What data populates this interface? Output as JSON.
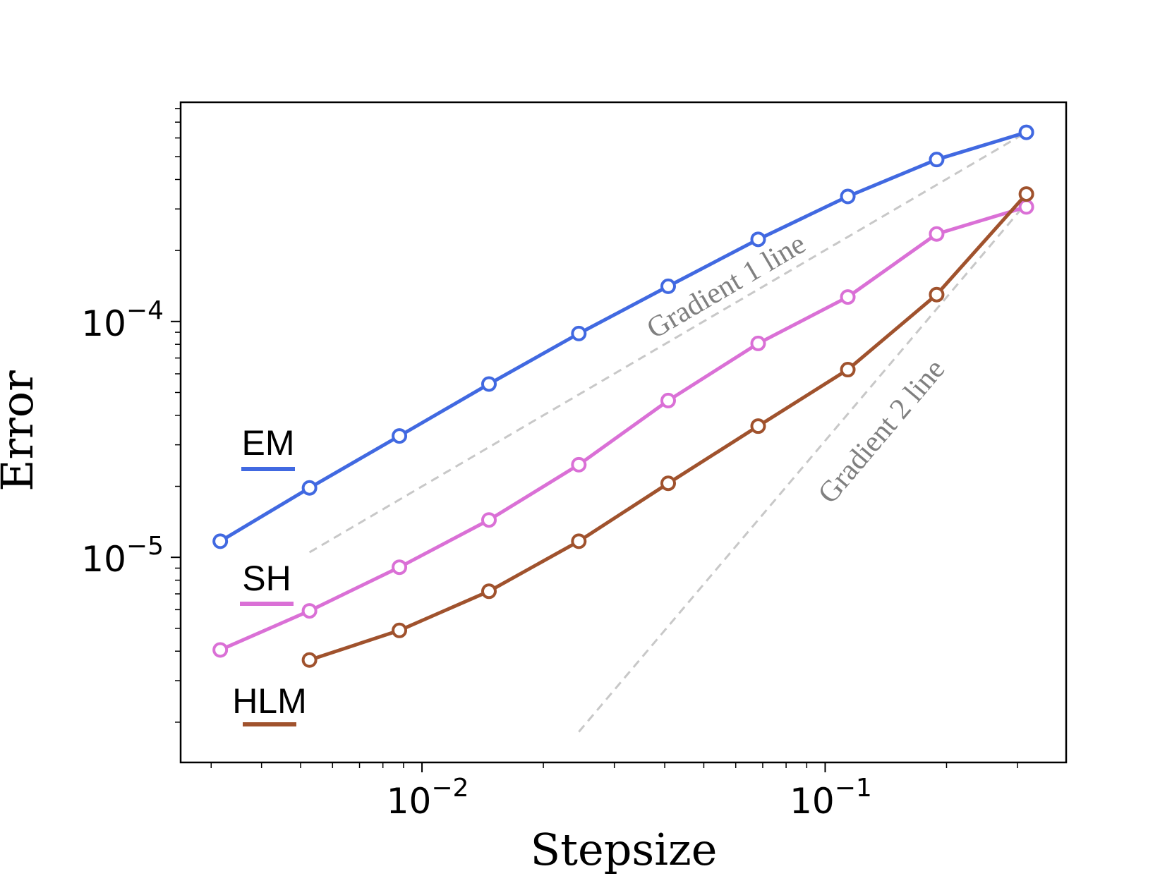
{
  "chart_data": {
    "type": "line",
    "xlabel": "Stepsize",
    "ylabel": "Error",
    "log_x": true,
    "log_y": true,
    "x": [
      0.00316,
      0.00526,
      0.00879,
      0.01466,
      0.02449,
      0.0408,
      0.0682,
      0.1138,
      0.189,
      0.3155
    ],
    "series": [
      {
        "name": "EM",
        "color": "#4169e1",
        "values": [
          1.17e-05,
          1.97e-05,
          3.27e-05,
          5.43e-05,
          8.89e-05,
          0.000141,
          0.000223,
          0.000339,
          0.000486,
          0.000634
        ]
      },
      {
        "name": "SH",
        "color": "#da70d6",
        "values": [
          4.05e-06,
          5.93e-06,
          9.08e-06,
          1.44e-05,
          2.47e-05,
          4.62e-05,
          8.07e-05,
          0.000127,
          0.000235,
          0.000306
        ]
      },
      {
        "name": "HLM",
        "color": "#a0522d",
        "values": [
          null,
          3.67e-06,
          4.9e-06,
          7.18e-06,
          1.17e-05,
          2.06e-05,
          3.6e-05,
          6.25e-05,
          0.00013,
          0.000347
        ]
      }
    ],
    "reference_lines": [
      {
        "label": "Gradient 1 line",
        "color": "#c8c8c8",
        "x": [
          0.00526,
          0.3155
        ],
        "values": [
          1.05e-05,
          0.000634
        ]
      },
      {
        "label": "Gradient 2 line",
        "color": "#c8c8c8",
        "x": [
          0.02449,
          0.3155
        ],
        "values": [
          1.82e-06,
          0.000318
        ]
      }
    ],
    "xlim": [
      0.00252,
      0.396
    ],
    "ylim": [
      1.35e-06,
      0.00085
    ],
    "xticks": [
      {
        "value": 0.01,
        "label": "10",
        "exponent": "−2"
      },
      {
        "value": 0.1,
        "label": "10",
        "exponent": "−1"
      }
    ],
    "yticks": [
      {
        "value": 1e-05,
        "label": "10",
        "exponent": "−5"
      },
      {
        "value": 0.0001,
        "label": "10",
        "exponent": "−4"
      }
    ],
    "xminor_ticks": [
      0.003,
      0.004,
      0.005,
      0.006,
      0.007,
      0.008,
      0.009,
      0.02,
      0.03,
      0.04,
      0.05,
      0.06,
      0.07,
      0.08,
      0.09,
      0.2,
      0.3
    ],
    "yminor_ticks": [
      2e-06,
      3e-06,
      4e-06,
      5e-06,
      6e-06,
      7e-06,
      8e-06,
      9e-06,
      2e-05,
      3e-05,
      4e-05,
      5e-05,
      6e-05,
      7e-05,
      8e-05,
      9e-05,
      0.0002,
      0.0003,
      0.0004,
      0.0005,
      0.0006,
      0.0007,
      0.0008
    ]
  }
}
